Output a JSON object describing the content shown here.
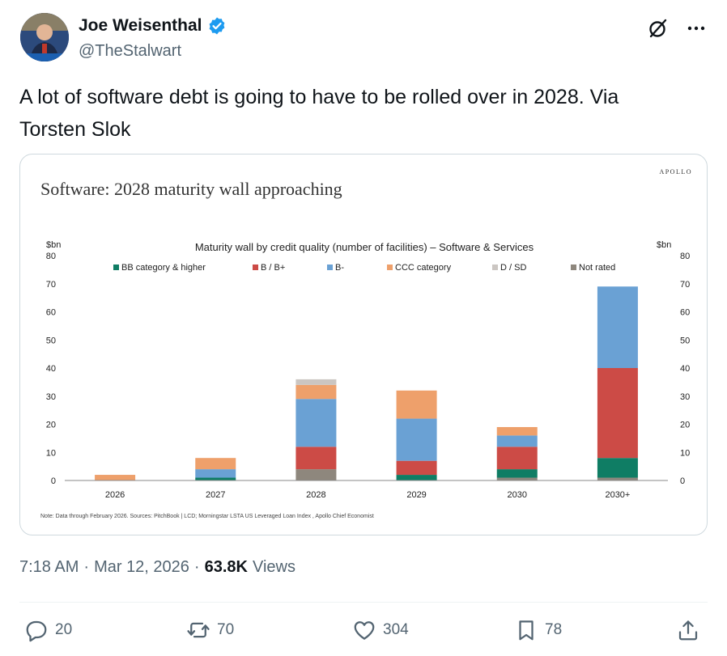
{
  "author": {
    "display_name": "Joe Weisenthal",
    "handle": "@TheStalwart"
  },
  "tweet": {
    "text": "A lot of software debt is going to have to be rolled over in 2028. Via Torsten Slok"
  },
  "meta": {
    "time": "7:18 AM",
    "date": "Mar 12, 2026",
    "views_count": "63.8K",
    "views_label": "Views"
  },
  "actions": {
    "replies": "20",
    "reposts": "70",
    "likes": "304",
    "bookmarks": "78"
  },
  "colors": {
    "verified": "#1d9bf0",
    "bb": "#0f7d64",
    "b_bplus": "#cc4b46",
    "bminus": "#6aa1d4",
    "ccc": "#eea06b",
    "d_sd": "#cbc6c2",
    "not_rated": "#8e877d"
  },
  "chart": {
    "brand": "APOLLO",
    "headline": "Software: 2028 maturity wall approaching",
    "footnote": "Note: Data through February 2026. Sources: PitchBook | LCD; Morningstar LSTA US Leveraged Loan Index , Apollo Chief Economist"
  },
  "chart_data": {
    "type": "bar",
    "stacked": true,
    "title": "Maturity wall by credit quality (number of facilities) – Software & Services",
    "ylabel_left": "$bn",
    "ylabel_right": "$bn",
    "ylim": [
      0,
      80
    ],
    "yticks": [
      0,
      10,
      20,
      30,
      40,
      50,
      60,
      70,
      80
    ],
    "categories": [
      "2026",
      "2027",
      "2028",
      "2029",
      "2030",
      "2030+"
    ],
    "legend_position": "top",
    "series": [
      {
        "name": "BB category & higher",
        "color": "#0f7d64",
        "values": [
          0,
          1,
          0,
          2,
          3,
          7
        ]
      },
      {
        "name": "B / B+",
        "color": "#cc4b46",
        "values": [
          0,
          0,
          8,
          5,
          8,
          32
        ]
      },
      {
        "name": "B-",
        "color": "#6aa1d4",
        "values": [
          0,
          3,
          17,
          15,
          4,
          29
        ]
      },
      {
        "name": "CCC category",
        "color": "#eea06b",
        "values": [
          2,
          4,
          5,
          10,
          3,
          0
        ]
      },
      {
        "name": "D / SD",
        "color": "#cbc6c2",
        "values": [
          0,
          0,
          2,
          0,
          0,
          0
        ]
      },
      {
        "name": "Not rated",
        "color": "#8e877d",
        "values": [
          0,
          0,
          4,
          0,
          1,
          1
        ]
      }
    ]
  }
}
